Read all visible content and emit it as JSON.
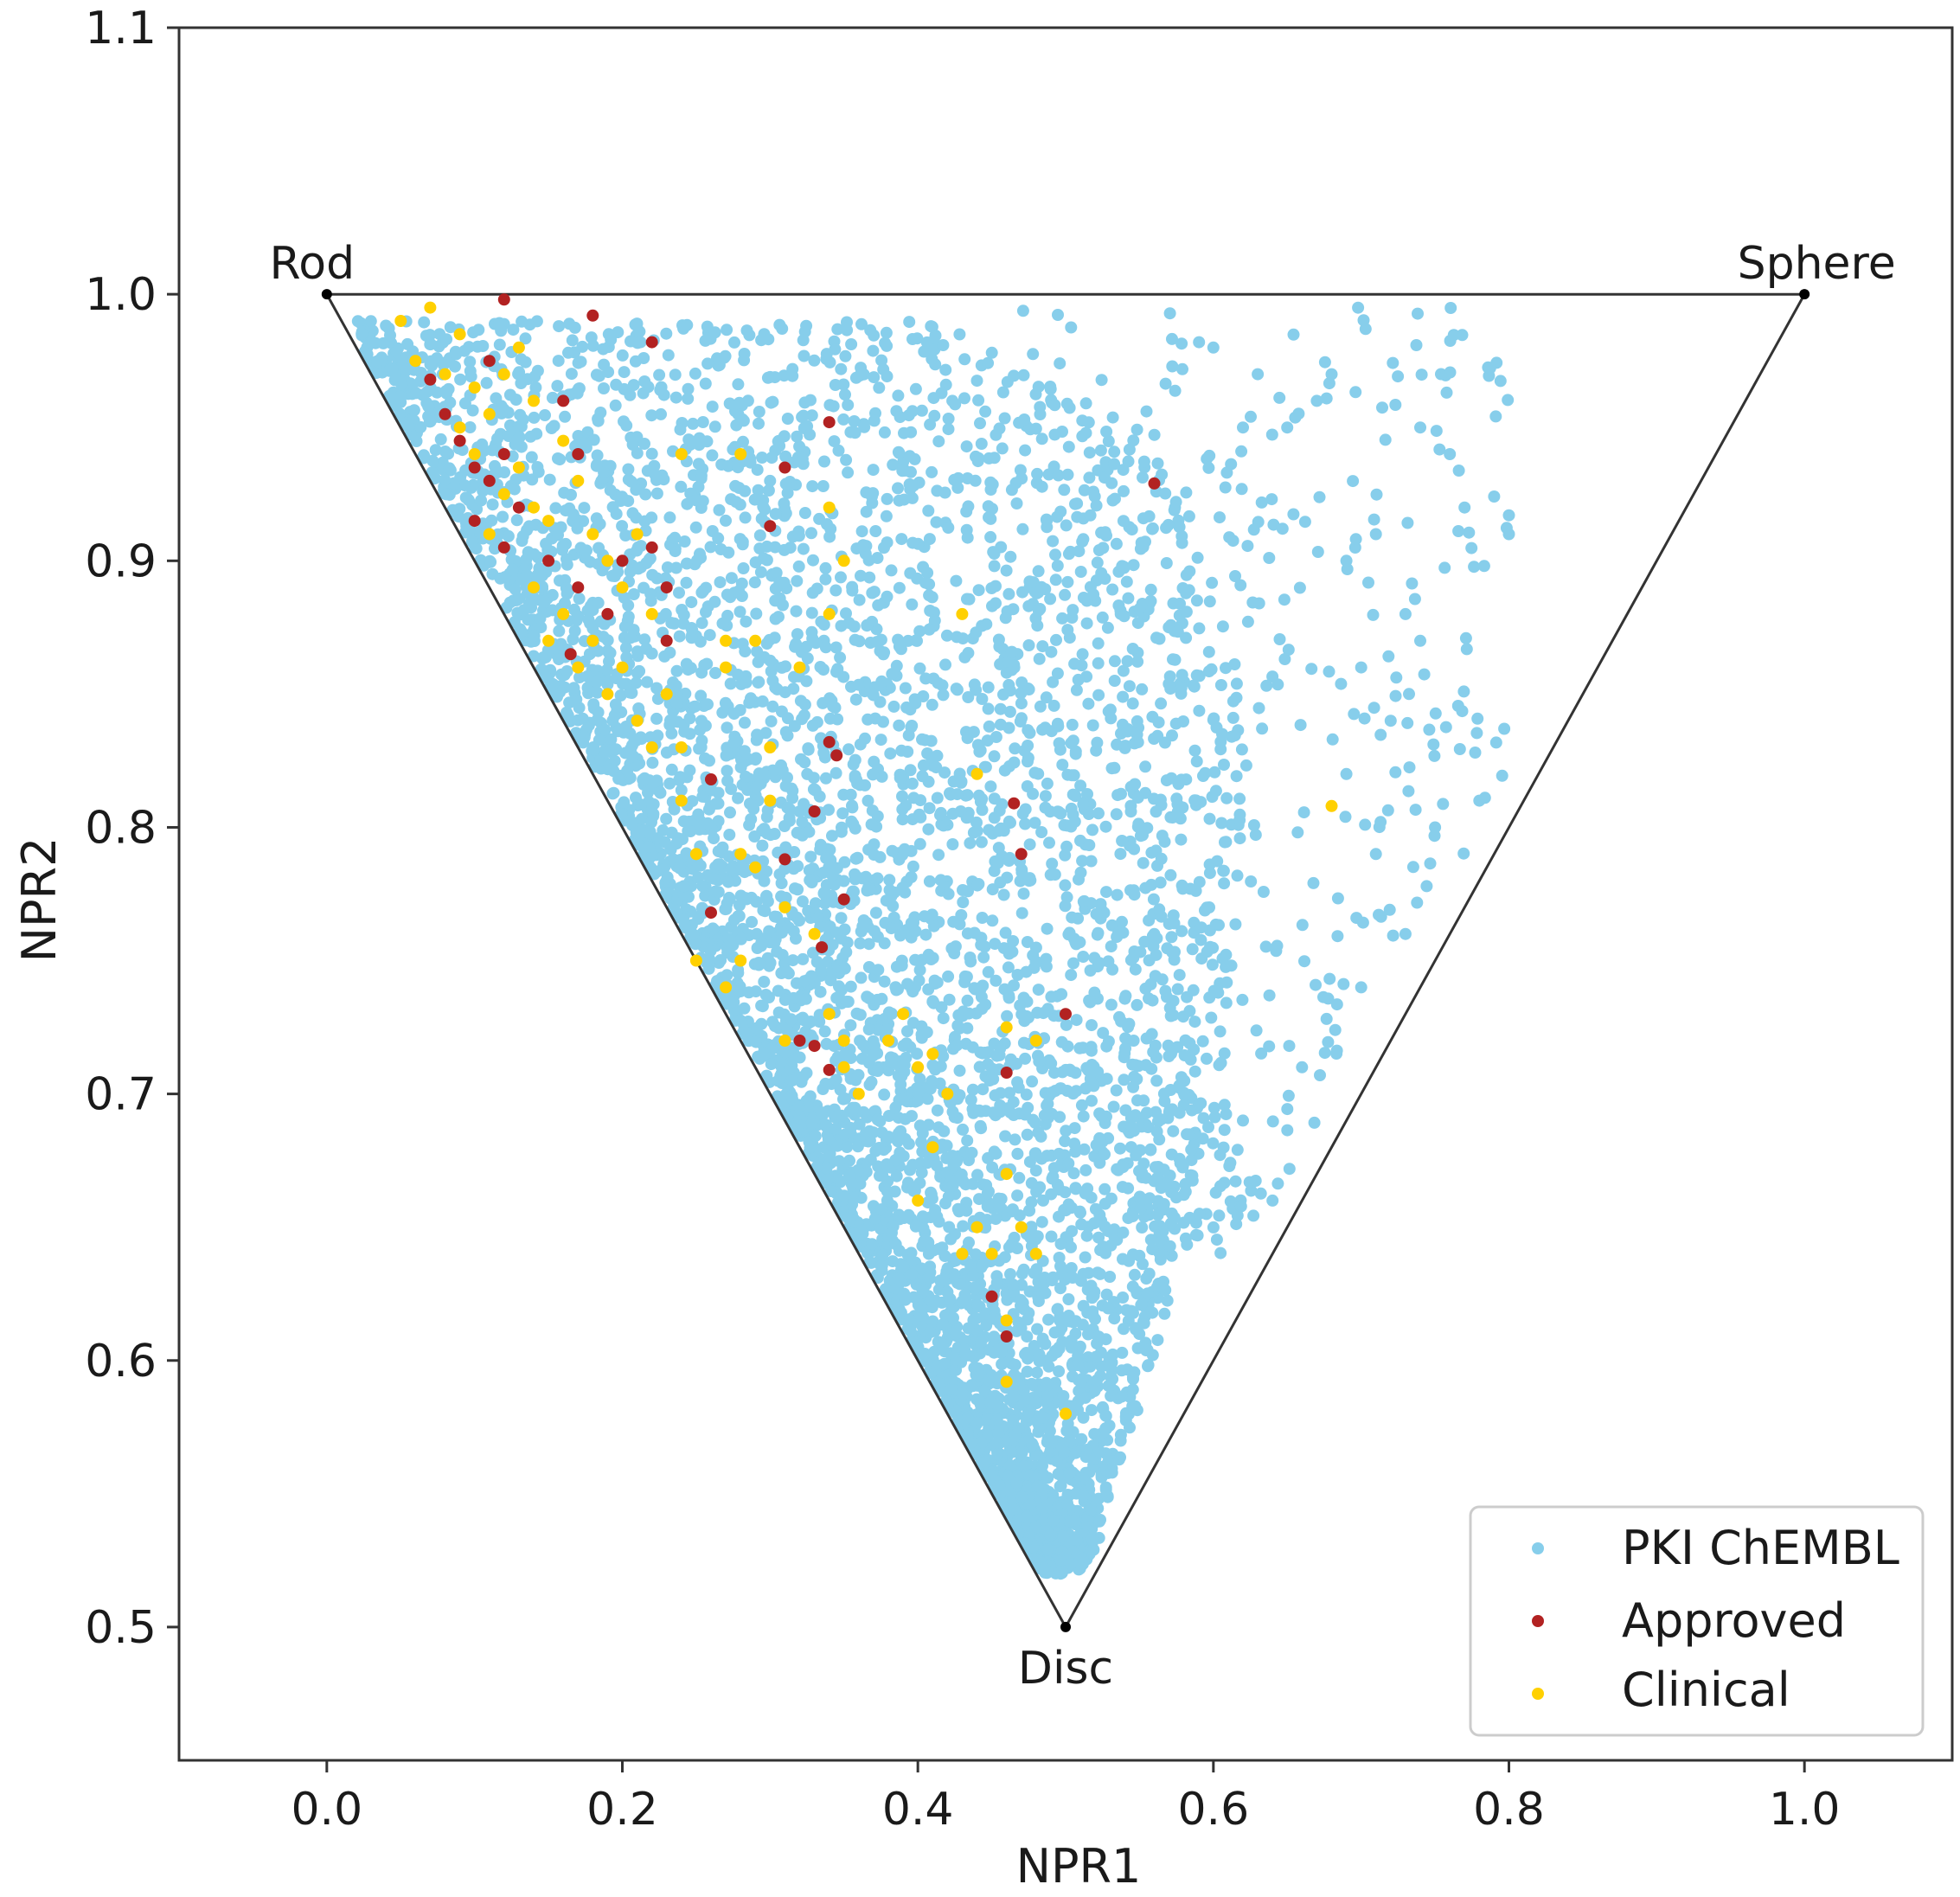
{
  "chart_data": {
    "type": "scatter",
    "title": "",
    "xlabel": "NPR1",
    "ylabel": "NPR2",
    "xlim": [
      -0.1,
      1.1
    ],
    "ylim": [
      0.45,
      1.1
    ],
    "x_ticks": [
      "0.0",
      "0.2",
      "0.4",
      "0.6",
      "0.8",
      "1.0"
    ],
    "x_tick_values": [
      0.0,
      0.2,
      0.4,
      0.6,
      0.8,
      1.0
    ],
    "y_ticks": [
      "0.5",
      "0.6",
      "0.7",
      "0.8",
      "0.9",
      "1.0",
      "1.1"
    ],
    "y_tick_values": [
      0.5,
      0.6,
      0.7,
      0.8,
      0.9,
      1.0,
      1.1
    ],
    "grid": false,
    "legend_position": "bottom-right",
    "reference_triangle": {
      "vertices": [
        {
          "label": "Rod",
          "x": 0.0,
          "y": 1.0
        },
        {
          "label": "Sphere",
          "x": 1.0,
          "y": 1.0
        },
        {
          "label": "Disc",
          "x": 0.5,
          "y": 0.5
        }
      ]
    },
    "series": [
      {
        "name": "PKI ChEMBL",
        "color": "#87CEEB",
        "note": "dense cloud of ~thousands of compounds; representative density bands listed",
        "density_bands": [
          {
            "y": 0.99,
            "x_range": [
              0.02,
              0.42
            ]
          },
          {
            "y": 0.95,
            "x_range": [
              0.04,
              0.55
            ]
          },
          {
            "y": 0.9,
            "x_range": [
              0.06,
              0.6
            ]
          },
          {
            "y": 0.85,
            "x_range": [
              0.09,
              0.62
            ]
          },
          {
            "y": 0.8,
            "x_range": [
              0.12,
              0.62
            ]
          },
          {
            "y": 0.75,
            "x_range": [
              0.14,
              0.62
            ]
          },
          {
            "y": 0.7,
            "x_range": [
              0.17,
              0.6
            ]
          },
          {
            "y": 0.65,
            "x_range": [
              0.2,
              0.58
            ]
          },
          {
            "y": 0.6,
            "x_range": [
              0.23,
              0.56
            ]
          },
          {
            "y": 0.55,
            "x_range": [
              0.26,
              0.53
            ]
          },
          {
            "y": 0.52,
            "x_range": [
              0.28,
              0.52
            ]
          }
        ],
        "outliers": [
          [
            0.8,
            0.91
          ],
          [
            0.76,
            0.94
          ],
          [
            0.74,
            0.95
          ],
          [
            0.73,
            0.88
          ],
          [
            0.74,
            0.87
          ],
          [
            0.72,
            0.84
          ],
          [
            0.75,
            0.8
          ],
          [
            0.78,
            0.81
          ],
          [
            0.73,
            0.76
          ],
          [
            0.7,
            0.74
          ],
          [
            0.68,
            0.97
          ],
          [
            0.67,
            0.96
          ],
          [
            0.65,
            0.95
          ],
          [
            0.63,
            0.97
          ],
          [
            0.62,
            0.95
          ],
          [
            0.6,
            0.98
          ],
          [
            0.7,
            0.86
          ],
          [
            0.69,
            0.82
          ],
          [
            0.71,
            0.79
          ],
          [
            0.66,
            0.71
          ],
          [
            0.64,
            0.66
          ],
          [
            0.62,
            0.69
          ],
          [
            0.71,
            0.91
          ],
          [
            0.69,
            0.9
          ],
          [
            0.77,
            0.92
          ]
        ]
      },
      {
        "name": "Approved",
        "color": "#B22222",
        "points": [
          [
            0.12,
            0.998
          ],
          [
            0.18,
            0.992
          ],
          [
            0.22,
            0.982
          ],
          [
            0.11,
            0.975
          ],
          [
            0.07,
            0.968
          ],
          [
            0.08,
            0.955
          ],
          [
            0.09,
            0.945
          ],
          [
            0.1,
            0.935
          ],
          [
            0.12,
            0.94
          ],
          [
            0.16,
            0.96
          ],
          [
            0.17,
            0.94
          ],
          [
            0.11,
            0.93
          ],
          [
            0.13,
            0.92
          ],
          [
            0.1,
            0.915
          ],
          [
            0.12,
            0.905
          ],
          [
            0.15,
            0.9
          ],
          [
            0.2,
            0.9
          ],
          [
            0.23,
            0.89
          ],
          [
            0.22,
            0.905
          ],
          [
            0.19,
            0.88
          ],
          [
            0.23,
            0.87
          ],
          [
            0.17,
            0.89
          ],
          [
            0.165,
            0.865
          ],
          [
            0.34,
            0.952
          ],
          [
            0.31,
            0.935
          ],
          [
            0.3,
            0.913
          ],
          [
            0.34,
            0.832
          ],
          [
            0.345,
            0.827
          ],
          [
            0.26,
            0.818
          ],
          [
            0.33,
            0.806
          ],
          [
            0.35,
            0.773
          ],
          [
            0.26,
            0.768
          ],
          [
            0.335,
            0.755
          ],
          [
            0.31,
            0.788
          ],
          [
            0.32,
            0.72
          ],
          [
            0.33,
            0.718
          ],
          [
            0.34,
            0.709
          ],
          [
            0.465,
            0.809
          ],
          [
            0.47,
            0.79
          ],
          [
            0.5,
            0.73
          ],
          [
            0.46,
            0.708
          ],
          [
            0.56,
            0.929
          ],
          [
            0.45,
            0.624
          ],
          [
            0.46,
            0.609
          ]
        ]
      },
      {
        "name": "Clinical",
        "color": "#FFD000",
        "points": [
          [
            0.05,
            0.99
          ],
          [
            0.07,
            0.995
          ],
          [
            0.09,
            0.985
          ],
          [
            0.06,
            0.975
          ],
          [
            0.08,
            0.97
          ],
          [
            0.1,
            0.965
          ],
          [
            0.12,
            0.97
          ],
          [
            0.13,
            0.98
          ],
          [
            0.14,
            0.96
          ],
          [
            0.11,
            0.955
          ],
          [
            0.09,
            0.95
          ],
          [
            0.1,
            0.94
          ],
          [
            0.13,
            0.935
          ],
          [
            0.12,
            0.925
          ],
          [
            0.14,
            0.92
          ],
          [
            0.11,
            0.91
          ],
          [
            0.16,
            0.945
          ],
          [
            0.17,
            0.93
          ],
          [
            0.15,
            0.915
          ],
          [
            0.18,
            0.91
          ],
          [
            0.19,
            0.9
          ],
          [
            0.21,
            0.91
          ],
          [
            0.2,
            0.89
          ],
          [
            0.22,
            0.88
          ],
          [
            0.18,
            0.87
          ],
          [
            0.17,
            0.86
          ],
          [
            0.19,
            0.85
          ],
          [
            0.21,
            0.84
          ],
          [
            0.23,
            0.85
          ],
          [
            0.22,
            0.83
          ],
          [
            0.24,
            0.83
          ],
          [
            0.24,
            0.81
          ],
          [
            0.25,
            0.79
          ],
          [
            0.14,
            0.89
          ],
          [
            0.15,
            0.87
          ],
          [
            0.16,
            0.88
          ],
          [
            0.2,
            0.86
          ],
          [
            0.24,
            0.94
          ],
          [
            0.28,
            0.94
          ],
          [
            0.34,
            0.92
          ],
          [
            0.27,
            0.87
          ],
          [
            0.29,
            0.87
          ],
          [
            0.27,
            0.86
          ],
          [
            0.32,
            0.86
          ],
          [
            0.34,
            0.88
          ],
          [
            0.35,
            0.9
          ],
          [
            0.3,
            0.83
          ],
          [
            0.3,
            0.81
          ],
          [
            0.28,
            0.79
          ],
          [
            0.29,
            0.785
          ],
          [
            0.31,
            0.77
          ],
          [
            0.33,
            0.76
          ],
          [
            0.27,
            0.74
          ],
          [
            0.28,
            0.75
          ],
          [
            0.25,
            0.75
          ],
          [
            0.34,
            0.73
          ],
          [
            0.35,
            0.72
          ],
          [
            0.31,
            0.72
          ],
          [
            0.35,
            0.71
          ],
          [
            0.36,
            0.7
          ],
          [
            0.38,
            0.72
          ],
          [
            0.39,
            0.73
          ],
          [
            0.41,
            0.715
          ],
          [
            0.42,
            0.7
          ],
          [
            0.4,
            0.71
          ],
          [
            0.44,
            0.82
          ],
          [
            0.43,
            0.88
          ],
          [
            0.46,
            0.725
          ],
          [
            0.48,
            0.72
          ],
          [
            0.41,
            0.68
          ],
          [
            0.4,
            0.66
          ],
          [
            0.44,
            0.65
          ],
          [
            0.43,
            0.64
          ],
          [
            0.46,
            0.67
          ],
          [
            0.47,
            0.65
          ],
          [
            0.48,
            0.64
          ],
          [
            0.45,
            0.64
          ],
          [
            0.46,
            0.615
          ],
          [
            0.46,
            0.592
          ],
          [
            0.5,
            0.58
          ],
          [
            0.68,
            0.808
          ]
        ]
      }
    ]
  }
}
